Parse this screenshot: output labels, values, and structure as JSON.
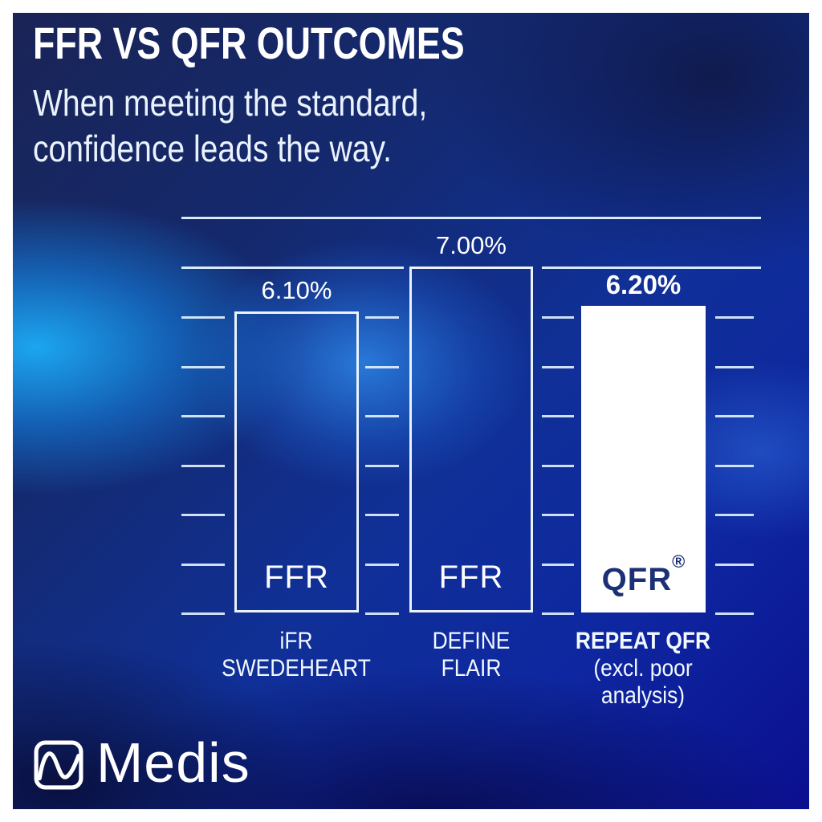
{
  "header": {
    "title": "FFR VS QFR OUTCOMES",
    "subtitle_line1": "When meeting the standard,",
    "subtitle_line2": "confidence leads the way."
  },
  "chart_data": {
    "type": "bar",
    "title": "FFR VS QFR OUTCOMES",
    "xlabel": "",
    "ylabel": "",
    "ylim": [
      0,
      8
    ],
    "gridline_step_pct": 1,
    "full_gridlines_pct": [
      7,
      8
    ],
    "dashed_gridlines_pct": [
      0,
      1,
      2,
      3,
      4,
      5,
      6
    ],
    "grid": true,
    "legend": false,
    "categories": [
      "iFR SWEDEHEART",
      "DEFINE FLAIR",
      "REPEAT QFR (excl. poor analysis)"
    ],
    "values": [
      6.1,
      7.0,
      6.2
    ],
    "bars": [
      {
        "value": 6.1,
        "value_label": "6.10%",
        "bar_text": "FFR",
        "category_lines": [
          "iFR",
          "SWEDEHEART"
        ],
        "style": "outline",
        "emphasized": false
      },
      {
        "value": 7.0,
        "value_label": "7.00%",
        "bar_text": "FFR",
        "category_lines": [
          "DEFINE",
          "FLAIR"
        ],
        "style": "outline",
        "emphasized": false
      },
      {
        "value": 6.2,
        "value_label": "6.20%",
        "bar_text": "QFR",
        "bar_text_sup": "®",
        "category_lines": [
          "REPEAT QFR",
          "(excl. poor",
          "analysis)"
        ],
        "style": "filled",
        "emphasized": true
      }
    ]
  },
  "footer": {
    "brand": "Medis"
  },
  "colors": {
    "frame": "#ffffff",
    "bright_glow": "#149ae6",
    "deep_blue": "#0d10a0",
    "dark_navy": "#131c52",
    "gridline": "#e4f3ff",
    "bar_fill_highlight": "#ffffff",
    "qfr_text": "#1d3076"
  }
}
